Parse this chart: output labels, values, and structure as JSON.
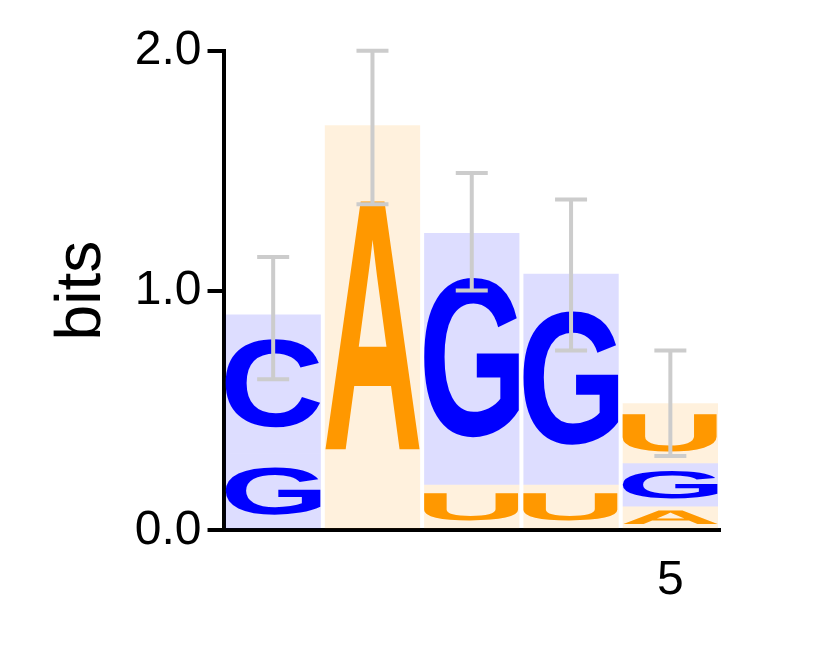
{
  "chart_data": {
    "type": "bar",
    "stacked": true,
    "ylabel": "bits",
    "categories": [
      null,
      null,
      null,
      null,
      "5"
    ],
    "ylim": [
      0,
      2.0
    ],
    "yticks": [
      {
        "value": 0,
        "label": "0.0"
      },
      {
        "value": 1,
        "label": "1.0"
      },
      {
        "value": 2,
        "label": "2.0"
      }
    ],
    "grid": false,
    "legend": false,
    "series": [
      {
        "colors": [
          "#0000ff",
          "#ff9900",
          "#ff9900",
          "#ff9900",
          "#ff9900"
        ],
        "values": [
          0.32,
          1.69,
          0.19,
          0.19,
          0.1
        ],
        "value_labels": [
          "G",
          "A",
          "U",
          "U",
          "A"
        ],
        "errors": [
          null,
          [
            1.36,
            2.0
          ],
          null,
          null,
          null
        ]
      },
      {
        "colors": [
          "#0000ff",
          null,
          "#0000ff",
          "#0000ff",
          "#0000ff"
        ],
        "values": [
          0.58,
          null,
          1.05,
          0.88,
          0.18
        ],
        "value_labels": [
          "C",
          null,
          "G",
          "G",
          "G"
        ],
        "errors": [
          [
            0.63,
            1.14
          ],
          null,
          [
            1.0,
            1.49
          ],
          [
            0.75,
            1.38
          ],
          null
        ]
      },
      {
        "colors": [
          null,
          null,
          null,
          null,
          "#ff9900"
        ],
        "values": [
          null,
          null,
          null,
          null,
          0.25
        ],
        "value_labels": [
          null,
          null,
          null,
          null,
          "U"
        ],
        "errors": [
          null,
          null,
          null,
          null,
          [
            0.31,
            0.75
          ]
        ]
      }
    ]
  }
}
